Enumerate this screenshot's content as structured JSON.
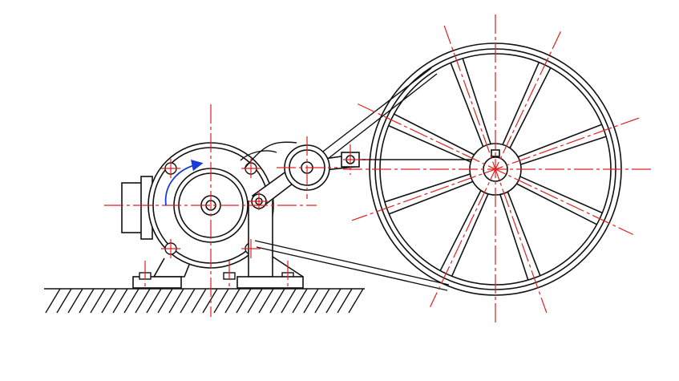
{
  "diagram": {
    "kind": "mechanical drawing: motor-driven belt drive with tensioner arm and large spoked pulley",
    "colors": {
      "outline": "#111111",
      "centerline": "#e02020",
      "rotation_arrow": "#1a3ad8",
      "background": "#ffffff"
    },
    "components": [
      "motor-housing",
      "motor-pulley",
      "tensioner-arm",
      "idler-pulley",
      "large-pulley",
      "drive-belt",
      "ground-base"
    ],
    "large_pulley_spokes": 8,
    "rotation_direction": "clockwise"
  }
}
